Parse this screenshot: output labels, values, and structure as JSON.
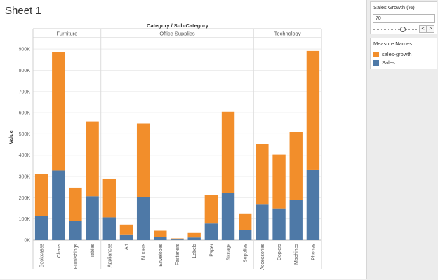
{
  "sheet": {
    "title": "Sheet 1"
  },
  "parameter": {
    "title": "Sales Growth (%)",
    "value": "70",
    "prev_label": "<",
    "next_label": ">",
    "slider_level_fraction": 0.66
  },
  "legend": {
    "title": "Measure Names",
    "items": [
      {
        "label": "sales-growth",
        "color": "#f28e2b"
      },
      {
        "label": "Sales",
        "color": "#4e79a7"
      }
    ]
  },
  "chart_data": {
    "type": "bar",
    "stacked": true,
    "title": "Category / Sub-Category",
    "ylabel": "Value",
    "ylim": [
      0,
      950000
    ],
    "yticks": [
      0,
      100000,
      200000,
      300000,
      400000,
      500000,
      600000,
      700000,
      800000,
      900000
    ],
    "ytick_labels": [
      "0K",
      "100K",
      "200K",
      "300K",
      "400K",
      "500K",
      "600K",
      "700K",
      "800K",
      "900K"
    ],
    "grid": true,
    "groups": [
      {
        "name": "Furniture",
        "categories": [
          "Bookcases",
          "Chairs",
          "Furnishings",
          "Tables"
        ]
      },
      {
        "name": "Office Supplies",
        "categories": [
          "Appliances",
          "Art",
          "Binders",
          "Envelopes",
          "Fasteners",
          "Labels",
          "Paper",
          "Storage",
          "Supplies"
        ]
      },
      {
        "name": "Technology",
        "categories": [
          "Accessories",
          "Copiers",
          "Machines",
          "Phones"
        ]
      }
    ],
    "categories": [
      "Bookcases",
      "Chairs",
      "Furnishings",
      "Tables",
      "Appliances",
      "Art",
      "Binders",
      "Envelopes",
      "Fasteners",
      "Labels",
      "Paper",
      "Storage",
      "Supplies",
      "Accessories",
      "Copiers",
      "Machines",
      "Phones"
    ],
    "series": [
      {
        "name": "Sales",
        "color": "#4e79a7",
        "values": [
          114880,
          328449,
          91705,
          206966,
          107532,
          27119,
          203413,
          16476,
          3024,
          12486,
          78479,
          223844,
          46674,
          167380,
          149528,
          189239,
          330007
        ]
      },
      {
        "name": "sales-growth",
        "color": "#f28e2b",
        "values": [
          195286,
          558363,
          155899,
          351842,
          182804,
          46102,
          345802,
          28010,
          5141,
          21226,
          133414,
          380535,
          79346,
          284546,
          254198,
          321706,
          561012
        ]
      }
    ]
  }
}
